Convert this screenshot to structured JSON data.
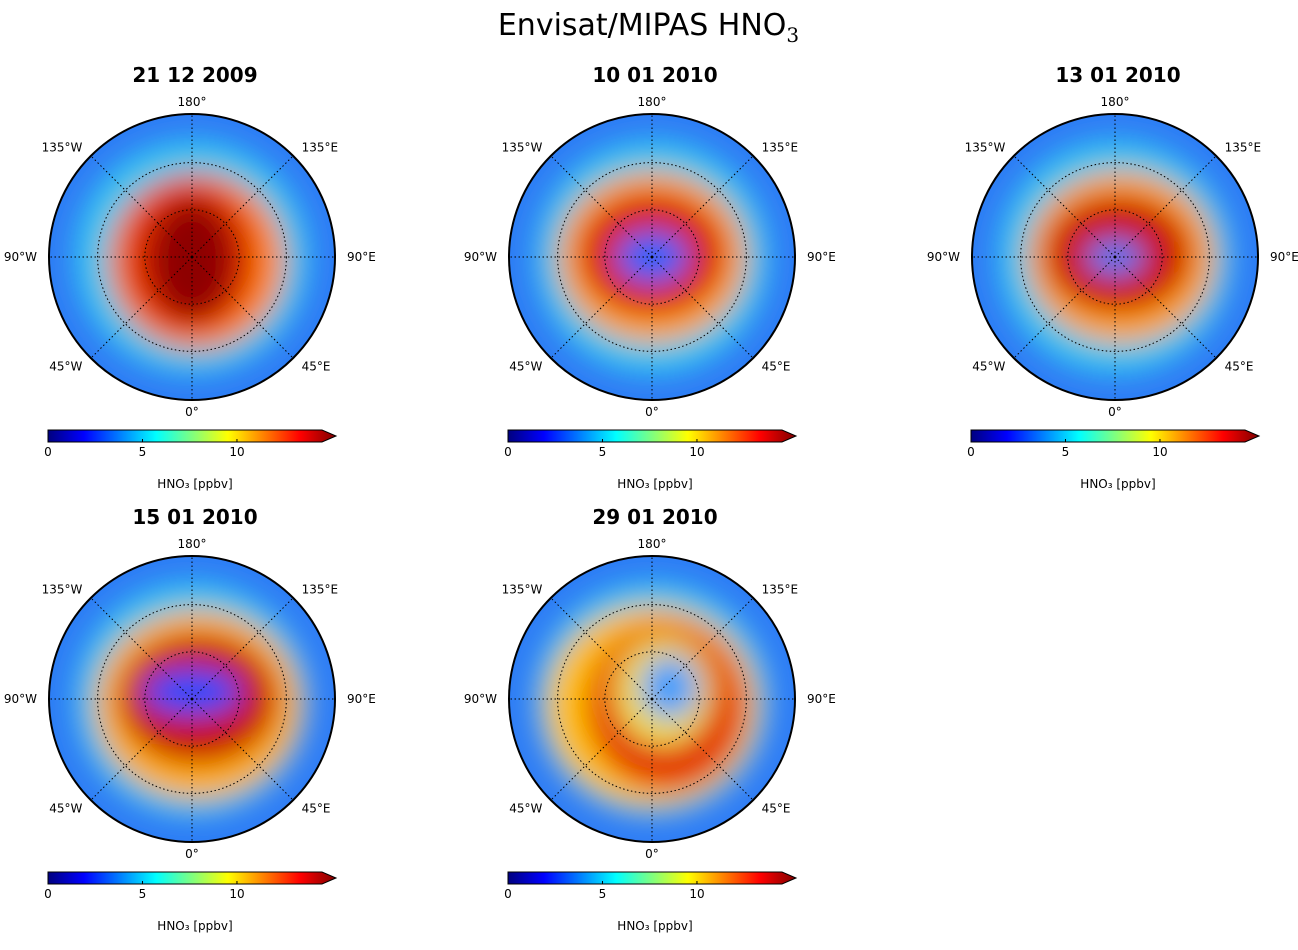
{
  "figure": {
    "title_text": "Envisat/MIPAS HNO",
    "title_subscript": "3"
  },
  "colorbar": {
    "label": "HNO₃ [ppbv]",
    "ticks": [
      "0",
      "5",
      "10"
    ],
    "min": 0,
    "max": 14.5,
    "extend": "max",
    "colormap": "jet"
  },
  "longitude_labels": [
    "180°",
    "135°E",
    "90°E",
    "45°E",
    "0°",
    "45°W",
    "90°W",
    "135°W"
  ],
  "chart_data": [
    {
      "type": "heatmap",
      "projection": "north-polar-stereographic",
      "title": "21 12 2009",
      "hno3_pattern": "high HNO₃ over the pole, maximum near the centre"
    },
    {
      "type": "heatmap",
      "projection": "north-polar-stereographic",
      "title": "10 01 2010",
      "hno3_pattern": "ring of high HNO₃, low values at the pole"
    },
    {
      "type": "heatmap",
      "projection": "north-polar-stereographic",
      "title": "13 01 2010",
      "hno3_pattern": "ring of high HNO₃, small low core"
    },
    {
      "type": "heatmap",
      "projection": "north-polar-stereographic",
      "title": "15 01 2010",
      "hno3_pattern": "broad ring of high HNO₃, large low core"
    },
    {
      "type": "heatmap",
      "projection": "north-polar-stereographic",
      "title": "29 01 2010",
      "hno3_pattern": "displaced crescent of high HNO₃, low core shifted off the pole"
    }
  ]
}
